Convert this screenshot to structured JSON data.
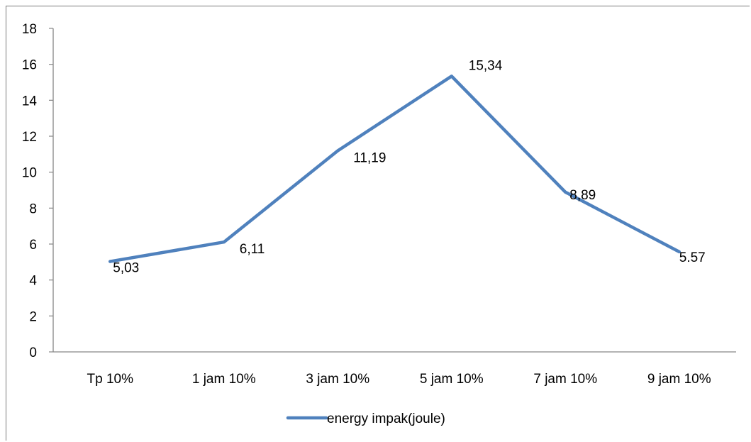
{
  "chart_data": {
    "type": "line",
    "title": "",
    "xlabel": "",
    "ylabel": "",
    "categories": [
      "Tp 10%",
      "1 jam 10%",
      "3 jam 10%",
      "5 jam 10%",
      "7 jam 10%",
      "9 jam 10%"
    ],
    "series": [
      {
        "name": "energy impak(joule)",
        "values": [
          5.03,
          6.11,
          11.19,
          15.34,
          8.89,
          5.57
        ],
        "labels": [
          "5,03",
          "6,11",
          "11,19",
          "15,34",
          "8,89",
          "5.57"
        ],
        "color": "#4f81bd"
      }
    ],
    "ylim": [
      0,
      18
    ],
    "yticks": [
      0,
      2,
      4,
      6,
      8,
      10,
      12,
      14,
      16,
      18
    ],
    "grid": false,
    "legend_position": "bottom"
  }
}
